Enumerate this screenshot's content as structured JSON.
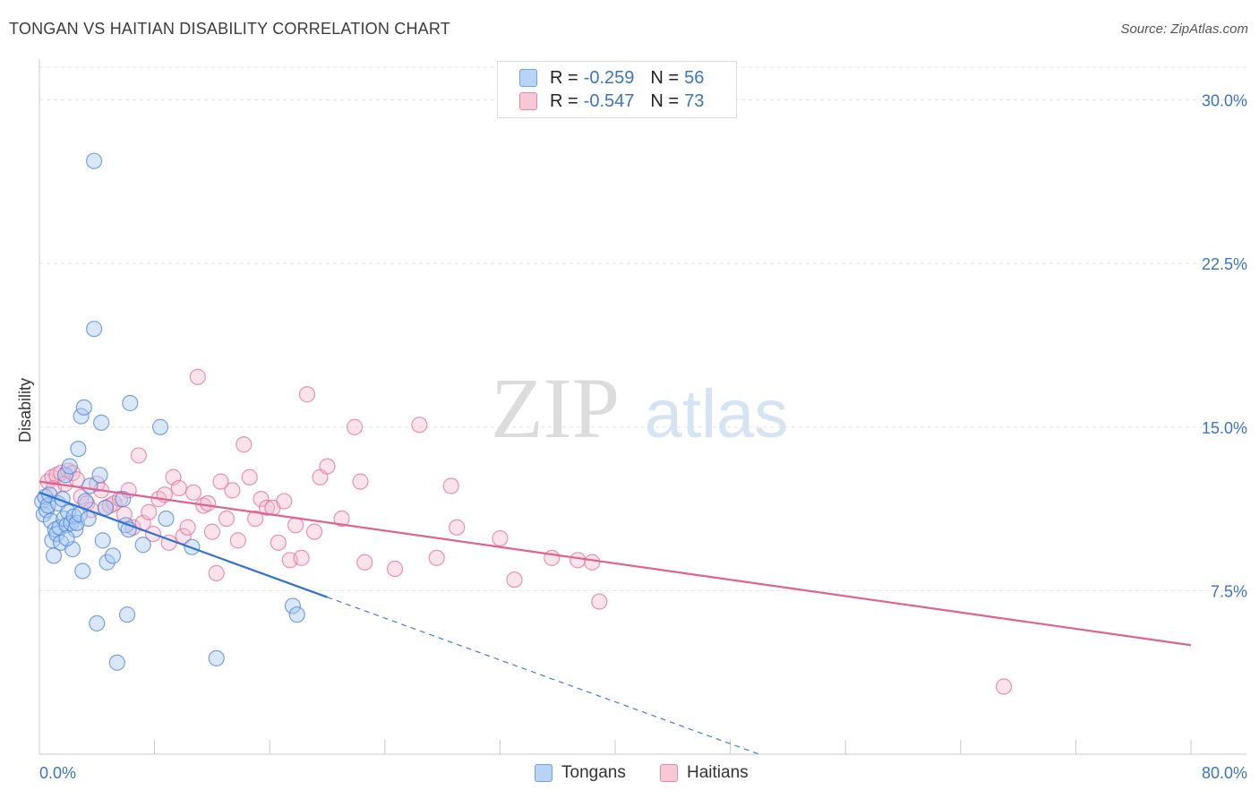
{
  "title": "TONGAN VS HAITIAN DISABILITY CORRELATION CHART",
  "source": "Source: ZipAtlas.com",
  "watermark": {
    "zip": "ZIP",
    "atlas": "atlas"
  },
  "legend": {
    "r_label": "R =",
    "n_label": "N =",
    "entries": [
      {
        "r": "-0.259",
        "n": "56",
        "color": "#6fa2e6",
        "fill": "#b8d3f5"
      },
      {
        "r": "-0.547",
        "n": "73",
        "color": "#ea87a7",
        "fill": "#f8c8d7"
      }
    ]
  },
  "bottom_legend": [
    "Tongans",
    "Haitians"
  ],
  "chart_data": {
    "type": "scatter",
    "title": "TONGAN VS HAITIAN DISABILITY CORRELATION CHART",
    "xlabel": "",
    "ylabel": "Disability",
    "xlim": [
      0,
      80
    ],
    "ylim": [
      0,
      31.5
    ],
    "x_tick_labels": [
      "0.0%",
      "80.0%"
    ],
    "y_ticks": [
      7.5,
      15.0,
      22.5,
      30.0
    ],
    "y_tick_labels": [
      "7.5%",
      "15.0%",
      "22.5%",
      "30.0%"
    ],
    "grid": "horizontal dashed",
    "legend_position": "top-center",
    "series": [
      {
        "name": "Tongans",
        "color": "#4f86d9",
        "points": [
          [
            0.2,
            11.6
          ],
          [
            0.3,
            11.0
          ],
          [
            0.4,
            11.8
          ],
          [
            0.5,
            11.2
          ],
          [
            0.6,
            11.4
          ],
          [
            0.7,
            11.9
          ],
          [
            0.8,
            10.7
          ],
          [
            0.9,
            9.8
          ],
          [
            1.0,
            9.1
          ],
          [
            1.1,
            10.3
          ],
          [
            1.2,
            10.1
          ],
          [
            1.3,
            11.5
          ],
          [
            1.4,
            10.4
          ],
          [
            1.5,
            9.7
          ],
          [
            1.6,
            11.7
          ],
          [
            1.7,
            10.8
          ],
          [
            1.8,
            12.8
          ],
          [
            1.9,
            10.5
          ],
          [
            2.0,
            11.1
          ],
          [
            2.1,
            13.2
          ],
          [
            2.2,
            10.6
          ],
          [
            2.3,
            9.4
          ],
          [
            2.4,
            10.9
          ],
          [
            2.5,
            10.3
          ],
          [
            2.6,
            10.6
          ],
          [
            2.7,
            14.0
          ],
          [
            2.8,
            11.0
          ],
          [
            2.9,
            15.5
          ],
          [
            3.0,
            8.4
          ],
          [
            3.1,
            15.9
          ],
          [
            3.2,
            11.6
          ],
          [
            3.4,
            10.8
          ],
          [
            3.5,
            12.3
          ],
          [
            3.8,
            27.2
          ],
          [
            3.8,
            19.5
          ],
          [
            4.0,
            6.0
          ],
          [
            4.2,
            12.8
          ],
          [
            4.3,
            15.2
          ],
          [
            4.4,
            9.8
          ],
          [
            4.6,
            11.3
          ],
          [
            4.7,
            8.8
          ],
          [
            5.1,
            9.1
          ],
          [
            5.4,
            4.2
          ],
          [
            5.8,
            11.7
          ],
          [
            6.0,
            10.5
          ],
          [
            6.1,
            6.4
          ],
          [
            6.2,
            10.3
          ],
          [
            6.3,
            16.1
          ],
          [
            7.2,
            9.6
          ],
          [
            8.4,
            15.0
          ],
          [
            8.8,
            10.8
          ],
          [
            10.6,
            9.5
          ],
          [
            12.3,
            4.4
          ],
          [
            17.6,
            6.8
          ],
          [
            17.9,
            6.4
          ],
          [
            1.9,
            9.9
          ]
        ]
      },
      {
        "name": "Haitians",
        "color": "#e2709a",
        "points": [
          [
            0.6,
            12.5
          ],
          [
            0.9,
            12.7
          ],
          [
            1.0,
            12.2
          ],
          [
            1.2,
            12.8
          ],
          [
            1.5,
            12.9
          ],
          [
            1.8,
            12.4
          ],
          [
            2.0,
            13.0
          ],
          [
            2.3,
            12.9
          ],
          [
            2.6,
            12.6
          ],
          [
            2.9,
            11.8
          ],
          [
            3.3,
            11.5
          ],
          [
            3.6,
            11.2
          ],
          [
            4.0,
            12.4
          ],
          [
            4.3,
            12.1
          ],
          [
            4.6,
            11.3
          ],
          [
            4.9,
            11.4
          ],
          [
            5.2,
            11.5
          ],
          [
            5.6,
            11.7
          ],
          [
            5.9,
            11.0
          ],
          [
            6.2,
            12.1
          ],
          [
            6.5,
            10.4
          ],
          [
            6.9,
            13.7
          ],
          [
            7.2,
            10.6
          ],
          [
            7.6,
            11.1
          ],
          [
            7.9,
            10.1
          ],
          [
            8.3,
            11.7
          ],
          [
            8.7,
            11.9
          ],
          [
            9.0,
            9.7
          ],
          [
            9.3,
            12.7
          ],
          [
            9.7,
            12.2
          ],
          [
            10.0,
            10.0
          ],
          [
            10.3,
            10.4
          ],
          [
            10.7,
            12.0
          ],
          [
            11.0,
            17.3
          ],
          [
            11.4,
            11.4
          ],
          [
            11.7,
            11.5
          ],
          [
            12.0,
            10.2
          ],
          [
            12.3,
            8.3
          ],
          [
            12.6,
            12.5
          ],
          [
            13.0,
            10.8
          ],
          [
            13.4,
            12.1
          ],
          [
            13.8,
            9.8
          ],
          [
            14.2,
            14.2
          ],
          [
            14.6,
            12.7
          ],
          [
            15.0,
            10.8
          ],
          [
            15.4,
            11.7
          ],
          [
            15.8,
            11.3
          ],
          [
            16.2,
            11.3
          ],
          [
            16.6,
            9.7
          ],
          [
            17.0,
            11.6
          ],
          [
            17.4,
            8.9
          ],
          [
            17.8,
            10.5
          ],
          [
            18.2,
            9.0
          ],
          [
            18.6,
            16.5
          ],
          [
            19.1,
            10.2
          ],
          [
            19.5,
            12.7
          ],
          [
            20.0,
            13.2
          ],
          [
            21.0,
            10.8
          ],
          [
            21.9,
            15.0
          ],
          [
            22.3,
            12.5
          ],
          [
            22.6,
            8.8
          ],
          [
            24.7,
            8.5
          ],
          [
            26.4,
            15.1
          ],
          [
            27.6,
            9.0
          ],
          [
            28.6,
            12.3
          ],
          [
            29.0,
            10.4
          ],
          [
            32.0,
            9.9
          ],
          [
            33.0,
            8.0
          ],
          [
            35.6,
            9.0
          ],
          [
            37.4,
            8.9
          ],
          [
            38.4,
            8.8
          ],
          [
            38.9,
            7.0
          ],
          [
            67.0,
            3.1
          ]
        ]
      }
    ],
    "trend_lines": [
      {
        "series": "Tongans",
        "x": [
          0,
          20
        ],
        "y": [
          12.0,
          7.2
        ],
        "extended_dashed_to": [
          50,
          0
        ]
      },
      {
        "series": "Haitians",
        "x": [
          0,
          80
        ],
        "y": [
          12.5,
          5.0
        ]
      }
    ]
  }
}
